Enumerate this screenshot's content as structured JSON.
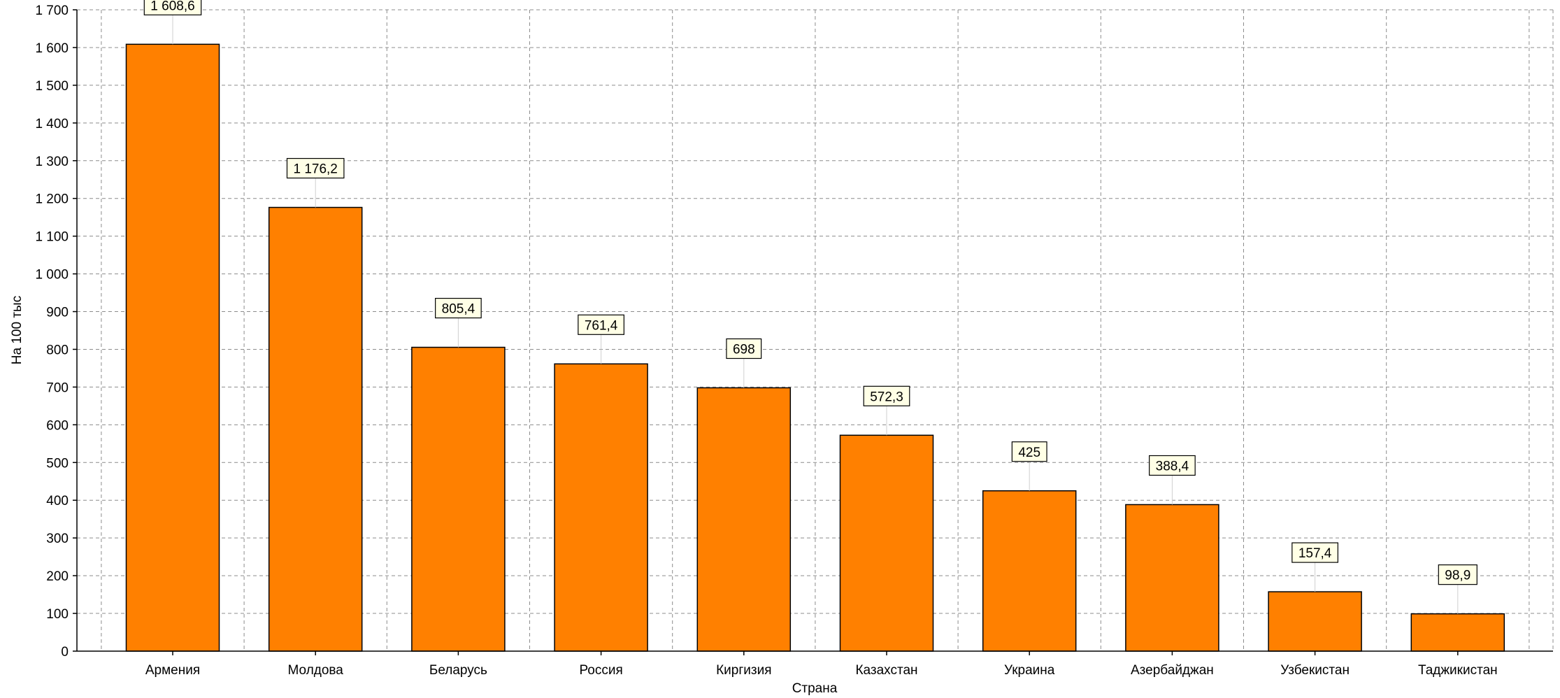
{
  "colors": {
    "bar_fill": "#ff8000",
    "bar_stroke": "#000000",
    "grid": "#8c8c8c",
    "label_bg": "#ffffe6",
    "background": "#ffffff"
  },
  "chart_data": {
    "type": "bar",
    "xlabel": "Страна",
    "ylabel": "На 100 тыс",
    "categories": [
      "Армения",
      "Молдова",
      "Беларусь",
      "Россия",
      "Киргизия",
      "Казахстан",
      "Украина",
      "Азербайджан",
      "Узбекистан",
      "Таджикистан"
    ],
    "values": [
      1608.6,
      1176.2,
      805.4,
      761.4,
      698,
      572.3,
      425,
      388.4,
      157.4,
      98.9
    ],
    "value_labels": [
      "1 608,6",
      "1 176,2",
      "805,4",
      "761,4",
      "698",
      "572,3",
      "425",
      "388,4",
      "157,4",
      "98,9"
    ],
    "ylim": [
      0,
      1700
    ],
    "yticks": [
      0,
      100,
      200,
      300,
      400,
      500,
      600,
      700,
      800,
      900,
      1000,
      1100,
      1200,
      1300,
      1400,
      1500,
      1600,
      1700
    ],
    "ytick_labels": [
      "0",
      "100",
      "200",
      "300",
      "400",
      "500",
      "600",
      "700",
      "800",
      "900",
      "1 000",
      "1 100",
      "1 200",
      "1 300",
      "1 400",
      "1 500",
      "1 600",
      "1 700"
    ],
    "grid": true,
    "legend": "none"
  }
}
